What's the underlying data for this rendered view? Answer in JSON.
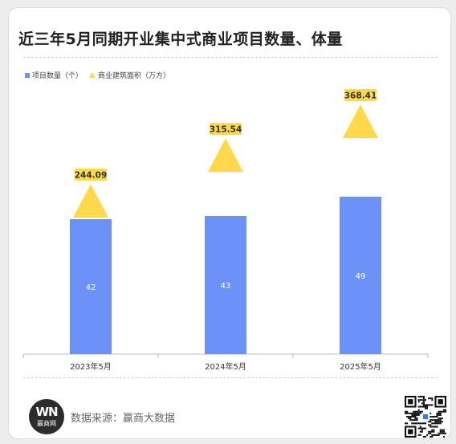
{
  "title": "近三年5月同期开业集中式商业项目数量、体量",
  "legend": {
    "bar_label": "项目数量（个）",
    "line_label": "商业建筑面积（万方）"
  },
  "colors": {
    "bar": "#6b93f7",
    "marker": "#ffd94a",
    "label_bg": "#ffd94a"
  },
  "chart_data": {
    "type": "bar",
    "categories": [
      "2023年5月",
      "2024年5月",
      "2025年5月"
    ],
    "series": [
      {
        "name": "项目数量（个）",
        "type": "bar",
        "values": [
          42,
          43,
          49
        ]
      },
      {
        "name": "商业建筑面积（万方）",
        "type": "scatter",
        "marker": "triangle",
        "values": [
          244.09,
          315.54,
          368.41
        ]
      }
    ],
    "grid": false,
    "legend_position": "top-left"
  },
  "footer": {
    "logo_mark": "WN",
    "logo_name": "赢商网",
    "source": "数据来源：赢商大数据",
    "qr_icon": "qr-code-icon"
  }
}
